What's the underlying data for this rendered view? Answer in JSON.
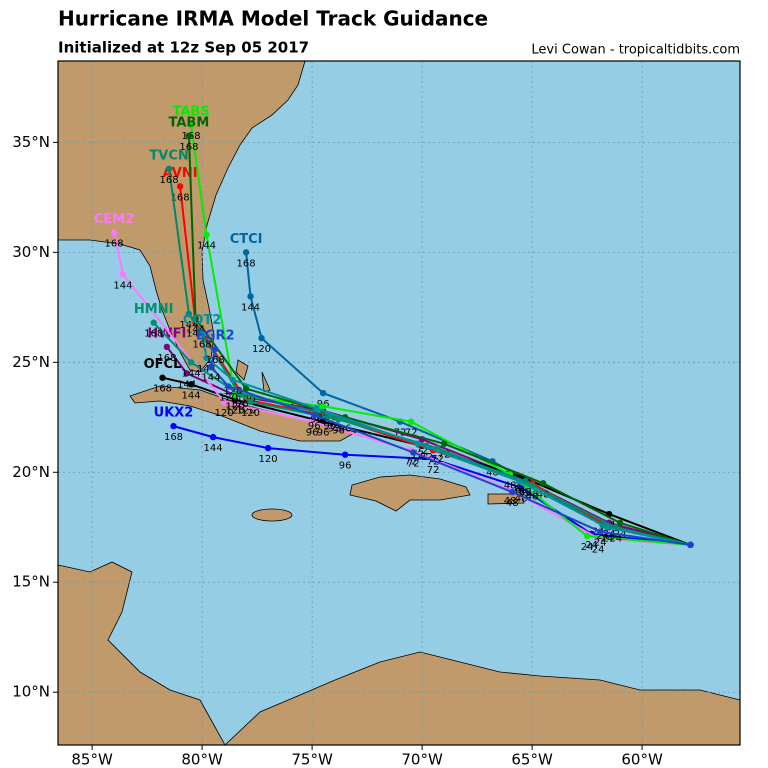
{
  "map": {
    "title": "Hurricane IRMA Model Track Guidance",
    "subtitle": "Initialized at 12z Sep 05 2017",
    "credit": "Levi Cowan - tropicaltidbits.com",
    "lonlim": [
      -86.55,
      -55.55
    ],
    "latlim": [
      7.6,
      38.7
    ],
    "lonticks": [
      {
        "value": -85,
        "label": "85°W"
      },
      {
        "value": -80,
        "label": "80°W"
      },
      {
        "value": -75,
        "label": "75°W"
      },
      {
        "value": -70,
        "label": "70°W"
      },
      {
        "value": -65,
        "label": "65°W"
      },
      {
        "value": -60,
        "label": "60°W"
      }
    ],
    "latticks": [
      {
        "value": 10,
        "label": "10°N"
      },
      {
        "value": 15,
        "label": "15°N"
      },
      {
        "value": 20,
        "label": "20°N"
      },
      {
        "value": 25,
        "label": "25°N"
      },
      {
        "value": 30,
        "label": "30°N"
      },
      {
        "value": 35,
        "label": "35°N"
      }
    ],
    "grid": true,
    "hour_labels": [
      24,
      48,
      72,
      96,
      120,
      144,
      168
    ],
    "tracks": [
      {
        "name": "CTCI",
        "color": "#00669e",
        "lon": [
          -57.8,
          -62.0,
          -66.8,
          -71.0,
          -74.5,
          -77.3,
          -77.8,
          -78.0
        ],
        "lat": [
          16.7,
          17.8,
          20.5,
          22.3,
          23.6,
          26.1,
          28.0,
          30.0
        ]
      },
      {
        "name": "HWFI",
        "color": "#800080",
        "lon": [
          -57.8,
          -61.5,
          -65.5,
          -70.0,
          -74.5,
          -78.5,
          -80.7,
          -81.6
        ],
        "lat": [
          16.7,
          17.7,
          19.7,
          21.5,
          22.8,
          23.5,
          24.5,
          25.7
        ]
      },
      {
        "name": "UKX2",
        "color": "#0000ff",
        "lon": [
          -57.8,
          -62.3,
          -65.5,
          -69.5,
          -73.5,
          -77.0,
          -79.5,
          -81.3
        ],
        "lat": [
          16.7,
          17.2,
          19.3,
          20.6,
          20.8,
          21.1,
          21.6,
          22.1
        ]
      },
      {
        "name": "OFCL",
        "color": "#000000",
        "lon": [
          -57.8,
          -61.5,
          -65.5,
          -70.0,
          -74.5,
          -78.5,
          -80.5,
          -81.8
        ],
        "lat": [
          16.7,
          18.1,
          19.8,
          21.2,
          22.3,
          23.3,
          24.0,
          24.3
        ]
      },
      {
        "name": "AVNI",
        "color": "#ff0000",
        "lon": [
          -57.8,
          -61.5,
          -65.0,
          -69.5,
          -74.0,
          -78.0,
          -80.3,
          -81.0
        ],
        "lat": [
          16.7,
          17.5,
          19.5,
          21.0,
          22.5,
          23.3,
          26.8,
          33.0
        ]
      },
      {
        "name": "CEM2",
        "color": "#ff77ff",
        "lon": [
          -57.8,
          -62.0,
          -66.0,
          -70.5,
          -75.0,
          -79.0,
          -83.6,
          -84.0
        ],
        "lat": [
          16.7,
          17.0,
          19.2,
          21.0,
          22.3,
          23.2,
          29.0,
          30.9
        ]
      },
      {
        "name": "TABS",
        "color": "#00ee00",
        "lon": [
          -57.8,
          -62.5,
          -66.0,
          -70.5,
          -74.5,
          -78.5,
          -79.8,
          -80.5
        ],
        "lat": [
          16.7,
          17.1,
          19.9,
          22.3,
          23.0,
          23.5,
          30.8,
          35.8
        ]
      },
      {
        "name": "TABM",
        "color": "#006400",
        "lon": [
          -57.8,
          -61.0,
          -64.5,
          -69.0,
          -73.5,
          -78.0,
          -80.3,
          -80.6
        ],
        "lat": [
          16.7,
          17.7,
          19.5,
          21.3,
          22.5,
          23.8,
          27.0,
          35.3
        ]
      },
      {
        "name": "TVCN",
        "color": "#00886a",
        "lon": [
          -57.8,
          -61.8,
          -65.3,
          -69.8,
          -74.2,
          -78.3,
          -80.6,
          -81.5
        ],
        "lat": [
          16.7,
          17.6,
          19.6,
          21.2,
          22.6,
          23.6,
          27.2,
          33.8
        ]
      },
      {
        "name": "HMNI",
        "color": "#009070",
        "lon": [
          -57.8,
          -61.2,
          -65.0,
          -69.3,
          -73.8,
          -77.8,
          -80.5,
          -82.2
        ],
        "lat": [
          16.7,
          17.5,
          19.4,
          21.1,
          22.4,
          23.2,
          25.0,
          26.8
        ]
      },
      {
        "name": "COT2",
        "color": "#0090a0",
        "lon": [
          -57.8,
          -61.6,
          -65.6,
          -70.2,
          -74.8,
          -78.6,
          -79.8,
          -80.0
        ],
        "lat": [
          16.7,
          17.5,
          19.6,
          21.3,
          22.9,
          24.2,
          25.2,
          26.3
        ]
      },
      {
        "name": "EGR2",
        "color": "#1848c8",
        "lon": [
          -57.8,
          -61.9,
          -65.9,
          -70.4,
          -74.9,
          -78.8,
          -79.6,
          -79.4
        ],
        "lat": [
          16.7,
          17.3,
          19.1,
          20.9,
          22.6,
          23.9,
          24.8,
          25.6
        ]
      }
    ]
  }
}
